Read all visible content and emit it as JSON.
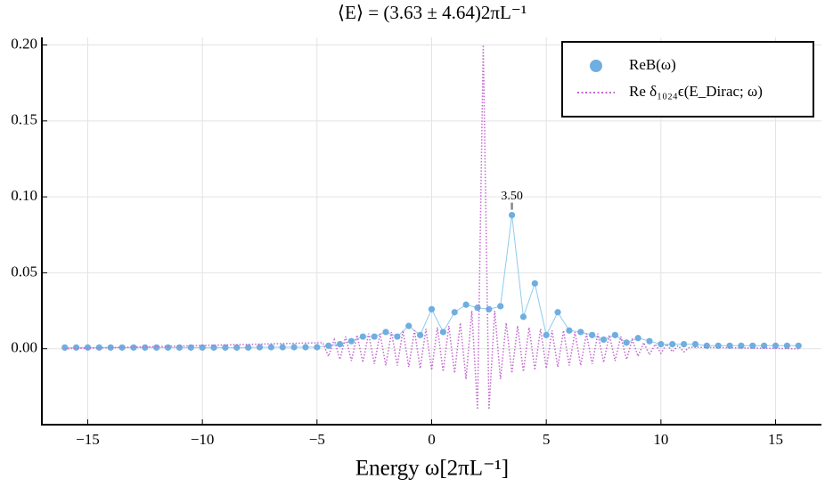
{
  "chart_data": {
    "type": "line",
    "title": "⟨E⟩ = (3.63 ± 4.64)2πL⁻¹",
    "x_label": "Energy ω[2πL⁻¹]",
    "xlim": [
      -17,
      17
    ],
    "ylim": [
      -0.05,
      0.205
    ],
    "xticks": [
      {
        "value": -15,
        "label": "−15"
      },
      {
        "value": -10,
        "label": "−10"
      },
      {
        "value": -5,
        "label": "−5"
      },
      0,
      5,
      10,
      15
    ],
    "yticks": [
      {
        "value": 0,
        "label": "0.00"
      },
      {
        "value": 0.05,
        "label": "0.05"
      },
      {
        "value": 0.1,
        "label": "0.10"
      },
      {
        "value": 0.15,
        "label": "0.15"
      },
      {
        "value": 0.2,
        "label": "0.20"
      }
    ],
    "grid": true,
    "legend": "top-right",
    "annotations": [
      {
        "text": "3.50",
        "x": 3.5
      }
    ],
    "series": [
      {
        "name": "ReB(ω)",
        "color": "#6faee0",
        "style": "markers-line",
        "x": [
          -16,
          -15.5,
          -15,
          -14.5,
          -14,
          -13.5,
          -13,
          -12.5,
          -12,
          -11.5,
          -11,
          -10.5,
          -10,
          -9.5,
          -9,
          -8.5,
          -8,
          -7.5,
          -7,
          -6.5,
          -6,
          -5.5,
          -5,
          -4.5,
          -4,
          -3.5,
          -3,
          -2.5,
          -2,
          -1.5,
          -1,
          -0.5,
          0,
          0.5,
          1,
          1.5,
          2,
          2.5,
          3,
          3.5,
          4,
          4.5,
          5,
          5.5,
          6,
          6.5,
          7,
          7.5,
          8,
          8.5,
          9,
          9.5,
          10,
          10.5,
          11,
          11.5,
          12,
          12.5,
          13,
          13.5,
          14,
          14.5,
          15,
          15.5,
          16
        ],
        "values": [
          0.0008,
          0.0008,
          0.0008,
          0.0008,
          0.0008,
          0.0008,
          0.0008,
          0.0008,
          0.0008,
          0.0008,
          0.0008,
          0.0008,
          0.0008,
          0.0008,
          0.0008,
          0.0008,
          0.0008,
          0.001,
          0.001,
          0.001,
          0.001,
          0.001,
          0.001,
          0.002,
          0.003,
          0.005,
          0.008,
          0.008,
          0.011,
          0.008,
          0.015,
          0.009,
          0.026,
          0.011,
          0.024,
          0.029,
          0.027,
          0.026,
          0.028,
          0.088,
          0.021,
          0.043,
          0.009,
          0.024,
          0.012,
          0.011,
          0.009,
          0.006,
          0.009,
          0.004,
          0.007,
          0.005,
          0.003,
          0.003,
          0.003,
          0.003,
          0.002,
          0.002,
          0.002,
          0.002,
          0.002,
          0.002,
          0.002,
          0.002,
          0.002
        ]
      },
      {
        "name": "Re δ₁₀₂₄ϵ(E_Dirac; ω)",
        "color": "#c267cf",
        "style": "dotted",
        "x": [
          -16,
          -4.75,
          -4.5,
          -4.25,
          -4,
          -3.75,
          -3.5,
          -3.25,
          -3,
          -2.75,
          -2.5,
          -2.25,
          -2,
          -1.75,
          -1.5,
          -1.25,
          -1,
          -0.75,
          -0.5,
          -0.25,
          0,
          0.25,
          0.5,
          0.75,
          1,
          1.25,
          1.5,
          1.75,
          2,
          2.25,
          2.5,
          2.75,
          3,
          3.25,
          3.5,
          3.75,
          4,
          4.25,
          4.5,
          4.75,
          5,
          5.25,
          5.5,
          5.75,
          6,
          6.25,
          6.5,
          6.75,
          7,
          7.25,
          7.5,
          7.75,
          8,
          8.25,
          8.5,
          8.75,
          9,
          9.25,
          9.5,
          9.75,
          10,
          10.25,
          10.5,
          10.75,
          11,
          11.25,
          16
        ],
        "values": [
          0,
          0.004,
          -0.005,
          0.006,
          -0.007,
          0.008,
          -0.008,
          0.009,
          -0.009,
          0.01,
          -0.01,
          0.01,
          -0.011,
          0.011,
          -0.011,
          0.012,
          -0.012,
          0.012,
          -0.013,
          0.013,
          -0.014,
          0.014,
          -0.015,
          0.015,
          -0.016,
          0.017,
          -0.02,
          0.025,
          -0.04,
          0.2,
          -0.04,
          0.025,
          -0.02,
          0.017,
          -0.016,
          0.015,
          -0.015,
          0.014,
          -0.014,
          0.013,
          -0.013,
          0.012,
          -0.012,
          0.012,
          -0.011,
          0.011,
          -0.011,
          0.01,
          -0.01,
          0.01,
          -0.009,
          0.009,
          -0.008,
          0.008,
          -0.007,
          0.006,
          -0.005,
          0.004,
          -0.004,
          0.003,
          -0.003,
          0.003,
          -0.002,
          0.002,
          -0.002,
          0.001,
          0
        ]
      }
    ]
  }
}
